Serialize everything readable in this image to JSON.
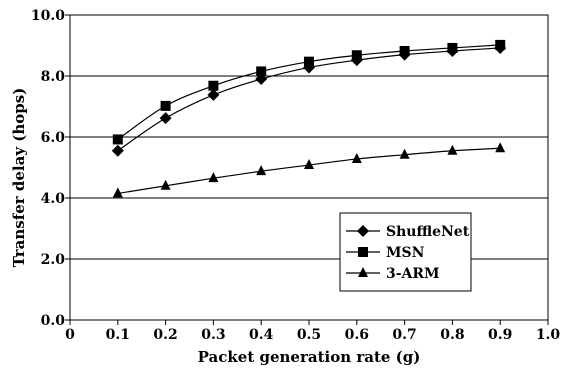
{
  "chart_data": {
    "type": "line",
    "title": "",
    "xlabel": "Packet generation rate (g)",
    "ylabel": "Transfer delay (hops)",
    "xlim": [
      0,
      1.0
    ],
    "ylim": [
      0,
      10.0
    ],
    "x_ticks": [
      0,
      0.1,
      0.2,
      0.3,
      0.4,
      0.5,
      0.6,
      0.7,
      0.8,
      0.9,
      1.0
    ],
    "x_tick_labels": [
      "0",
      "0.1",
      "0.2",
      "0.3",
      "0.4",
      "0.5",
      "0.6",
      "0.7",
      "0.8",
      "0.9",
      "1.0"
    ],
    "y_ticks": [
      0,
      2,
      4,
      6,
      8,
      10
    ],
    "y_tick_labels": [
      "0.0",
      "2.0",
      "4.0",
      "6.0",
      "8.0",
      "10.0"
    ],
    "grid": "horizontal",
    "legend_position": "bottom-right",
    "x": [
      0.1,
      0.2,
      0.3,
      0.4,
      0.5,
      0.6,
      0.7,
      0.8,
      0.9
    ],
    "series": [
      {
        "name": "ShuffleNet",
        "marker": "diamond",
        "color": "#000000",
        "values": [
          5.55,
          6.62,
          7.38,
          7.9,
          8.28,
          8.52,
          8.7,
          8.82,
          8.92
        ]
      },
      {
        "name": "MSN",
        "marker": "square",
        "color": "#000000",
        "values": [
          5.92,
          7.02,
          7.68,
          8.15,
          8.47,
          8.68,
          8.82,
          8.92,
          9.02
        ]
      },
      {
        "name": "3-ARM",
        "marker": "triangle",
        "color": "#000000",
        "values": [
          4.15,
          4.4,
          4.65,
          4.88,
          5.08,
          5.28,
          5.42,
          5.55,
          5.63
        ]
      }
    ]
  }
}
